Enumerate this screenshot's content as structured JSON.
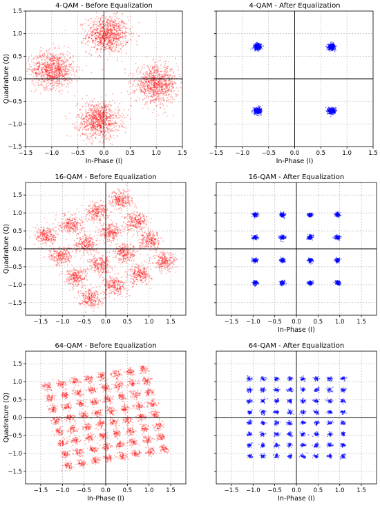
{
  "colors": {
    "before": "#ff0000",
    "after": "#0000ff",
    "grid": "#b0b0b0",
    "axis": "#000000"
  },
  "chart_data": [
    {
      "type": "scatter",
      "title": "4-QAM - Before Equalization",
      "xlabel": "In-Phase (I)",
      "ylabel": "Quadrature (Q)",
      "xlim": [
        -1.5,
        1.5
      ],
      "ylim": [
        -1.5,
        1.5
      ],
      "xticks": [
        -1.5,
        -1.0,
        -0.5,
        0.0,
        0.5,
        1.0,
        1.5
      ],
      "yticks": [
        -1.5,
        -1.0,
        -0.5,
        0.0,
        0.5,
        1.0,
        1.5
      ],
      "grid": true,
      "color": "before",
      "cluster_centers": [
        [
          0.07,
          0.98
        ],
        [
          -0.98,
          0.2
        ],
        [
          -0.1,
          -0.92
        ],
        [
          1.0,
          -0.12
        ]
      ],
      "cluster_spread": 0.2,
      "points_per_cluster": 900
    },
    {
      "type": "scatter",
      "title": "4-QAM - After Equalization",
      "xlabel": "In-Phase (I)",
      "ylabel": "",
      "xlim": [
        -1.5,
        1.5
      ],
      "ylim": [
        -1.5,
        1.5
      ],
      "xticks": [
        -1.5,
        -1.0,
        -0.5,
        0.0,
        0.5,
        1.0,
        1.5
      ],
      "yticks": [],
      "grid": true,
      "color": "after",
      "cluster_centers": [
        [
          -0.71,
          0.71
        ],
        [
          0.71,
          0.71
        ],
        [
          -0.71,
          -0.71
        ],
        [
          0.71,
          -0.71
        ]
      ],
      "cluster_spread": 0.035,
      "points_per_cluster": 400
    },
    {
      "type": "scatter",
      "title": "16-QAM - Before Equalization",
      "xlabel": "",
      "ylabel": "Quadrature (Q)",
      "xlim": [
        -1.85,
        1.85
      ],
      "ylim": [
        -1.85,
        1.85
      ],
      "xticks": [
        -1.5,
        -1.0,
        -0.5,
        0.0,
        0.5,
        1.0,
        1.5
      ],
      "yticks": [
        -1.5,
        -1.0,
        -0.5,
        0.0,
        0.5,
        1.0,
        1.5
      ],
      "grid": true,
      "color": "before",
      "grid_levels": [
        -0.95,
        -0.32,
        0.32,
        0.95
      ],
      "rotation_deg": 30,
      "scale": 1.05,
      "cluster_spread": 0.13,
      "points_per_cluster": 240
    },
    {
      "type": "scatter",
      "title": "16-QAM - After Equalization",
      "xlabel": "In-Phase (I)",
      "ylabel": "",
      "xlim": [
        -1.85,
        1.85
      ],
      "ylim": [
        -1.85,
        1.85
      ],
      "xticks": [
        -1.5,
        -1.0,
        -0.5,
        0.0,
        0.5,
        1.0,
        1.5
      ],
      "yticks": [],
      "grid": true,
      "color": "after",
      "grid_levels": [
        -0.95,
        -0.32,
        0.32,
        0.95
      ],
      "rotation_deg": 0,
      "scale": 1.0,
      "cluster_spread": 0.03,
      "points_per_cluster": 130
    },
    {
      "type": "scatter",
      "title": "64-QAM - Before Equalization",
      "xlabel": "In-Phase (I)",
      "ylabel": "Quadrature (Q)",
      "xlim": [
        -1.85,
        1.85
      ],
      "ylim": [
        -1.85,
        1.85
      ],
      "xticks": [
        -1.5,
        -1.0,
        -0.5,
        0.0,
        0.5,
        1.0,
        1.5
      ],
      "yticks": [
        -1.5,
        -1.0,
        -0.5,
        0.0,
        0.5,
        1.0,
        1.5
      ],
      "grid": true,
      "color": "before",
      "grid_levels": [
        -1.08,
        -0.77,
        -0.46,
        -0.15,
        0.15,
        0.46,
        0.77,
        1.08
      ],
      "rotation_deg": 12,
      "scale": 1.05,
      "cluster_spread": 0.055,
      "points_per_cluster": 60
    },
    {
      "type": "scatter",
      "title": "64-QAM - After Equalization",
      "xlabel": "In-Phase (I)",
      "ylabel": "",
      "xlim": [
        -1.85,
        1.85
      ],
      "ylim": [
        -1.85,
        1.85
      ],
      "xticks": [
        -1.5,
        -1.0,
        -0.5,
        0.0,
        0.5,
        1.0,
        1.5
      ],
      "yticks": [],
      "grid": true,
      "color": "after",
      "grid_levels": [
        -1.08,
        -0.77,
        -0.46,
        -0.15,
        0.15,
        0.46,
        0.77,
        1.08
      ],
      "rotation_deg": 0,
      "scale": 1.0,
      "cluster_spread": 0.03,
      "points_per_cluster": 45
    }
  ]
}
